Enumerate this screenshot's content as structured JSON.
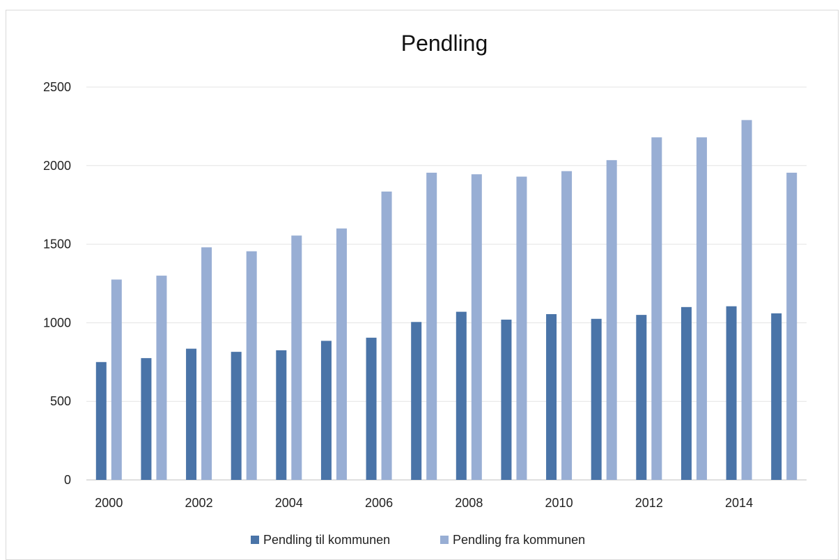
{
  "chart_data": {
    "type": "bar",
    "title": "Pendling",
    "xlabel": "",
    "ylabel": "",
    "categories": [
      "2000",
      "2001",
      "2002",
      "2003",
      "2004",
      "2005",
      "2006",
      "2007",
      "2008",
      "2009",
      "2010",
      "2011",
      "2012",
      "2013",
      "2014",
      "2015"
    ],
    "x_tick_labels": [
      "2000",
      "2002",
      "2004",
      "2006",
      "2008",
      "2010",
      "2012",
      "2014"
    ],
    "y_ticks": [
      0,
      500,
      1000,
      1500,
      2000,
      2500
    ],
    "ylim": [
      0,
      2500
    ],
    "grid": true,
    "legend_position": "bottom",
    "series": [
      {
        "name": "Pendling til kommunen",
        "color": "#4a74a8",
        "values": [
          750,
          775,
          835,
          815,
          825,
          885,
          905,
          1005,
          1070,
          1020,
          1055,
          1025,
          1050,
          1100,
          1105,
          1060
        ]
      },
      {
        "name": "Pendling fra kommunen",
        "color": "#98aed4",
        "values": [
          1275,
          1300,
          1480,
          1455,
          1555,
          1600,
          1835,
          1955,
          1945,
          1930,
          1965,
          2035,
          2180,
          2180,
          2290,
          1955
        ]
      }
    ]
  }
}
